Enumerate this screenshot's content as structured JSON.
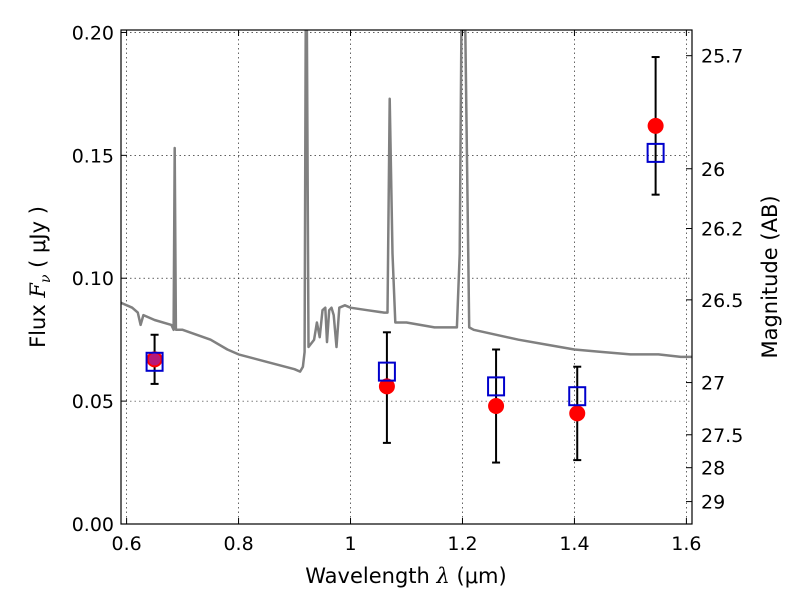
{
  "chart_data": {
    "type": "scatter",
    "xlabel": {
      "prefix": "Wavelength  ",
      "symbol": "λ",
      "suffix": " (μm)"
    },
    "ylabel": {
      "prefix": "Flux  ",
      "symbol": "F",
      "sub": "ν",
      "suffix": "  ( μJy )"
    },
    "ylabel_right": "Magnitude (AB)",
    "xlim": [
      0.59,
      1.61
    ],
    "ylim": [
      0.0,
      0.201
    ],
    "grid": true,
    "x_ticks": [
      {
        "value": 0.6,
        "label": "0.6"
      },
      {
        "value": 0.8,
        "label": "0.8"
      },
      {
        "value": 1.0,
        "label": "1"
      },
      {
        "value": 1.2,
        "label": "1.2"
      },
      {
        "value": 1.4,
        "label": "1.4"
      },
      {
        "value": 1.6,
        "label": "1.6"
      }
    ],
    "y_ticks": [
      {
        "value": 0.0,
        "label": "0.00"
      },
      {
        "value": 0.05,
        "label": "0.05"
      },
      {
        "value": 0.1,
        "label": "0.10"
      },
      {
        "value": 0.15,
        "label": "0.15"
      },
      {
        "value": 0.2,
        "label": "0.20"
      }
    ],
    "mag_ticks": [
      {
        "value": 25.7,
        "label": "25.7"
      },
      {
        "value": 26.0,
        "label": "26"
      },
      {
        "value": 26.2,
        "label": "26.2"
      },
      {
        "value": 26.5,
        "label": "26.5"
      },
      {
        "value": 27.0,
        "label": "27"
      },
      {
        "value": 27.5,
        "label": "27.5"
      },
      {
        "value": 28.0,
        "label": "28"
      },
      {
        "value": 29.0,
        "label": "29"
      }
    ],
    "series": [
      {
        "kind": "model_spectrum",
        "color": "#808080",
        "points": [
          [
            0.59,
            0.09
          ],
          [
            0.61,
            0.088
          ],
          [
            0.62,
            0.086
          ],
          [
            0.625,
            0.081
          ],
          [
            0.63,
            0.085
          ],
          [
            0.65,
            0.083
          ],
          [
            0.68,
            0.081
          ],
          [
            0.684,
            0.079
          ],
          [
            0.686,
            0.153
          ],
          [
            0.688,
            0.079
          ],
          [
            0.7,
            0.079
          ],
          [
            0.75,
            0.075
          ],
          [
            0.78,
            0.071
          ],
          [
            0.8,
            0.069
          ],
          [
            0.85,
            0.066
          ],
          [
            0.9,
            0.063
          ],
          [
            0.91,
            0.062
          ],
          [
            0.915,
            0.064
          ],
          [
            0.918,
            0.07
          ],
          [
            0.92,
            0.201
          ],
          [
            0.922,
            0.201
          ],
          [
            0.925,
            0.072
          ],
          [
            0.935,
            0.075
          ],
          [
            0.94,
            0.082
          ],
          [
            0.945,
            0.076
          ],
          [
            0.95,
            0.087
          ],
          [
            0.955,
            0.088
          ],
          [
            0.958,
            0.074
          ],
          [
            0.962,
            0.087
          ],
          [
            0.966,
            0.088
          ],
          [
            0.97,
            0.085
          ],
          [
            0.975,
            0.072
          ],
          [
            0.98,
            0.088
          ],
          [
            0.99,
            0.089
          ],
          [
            1.0,
            0.088
          ],
          [
            1.03,
            0.087
          ],
          [
            1.06,
            0.086
          ],
          [
            1.066,
            0.086
          ],
          [
            1.07,
            0.173
          ],
          [
            1.075,
            0.11
          ],
          [
            1.08,
            0.082
          ],
          [
            1.1,
            0.082
          ],
          [
            1.15,
            0.08
          ],
          [
            1.19,
            0.08
          ],
          [
            1.195,
            0.11
          ],
          [
            1.198,
            0.201
          ],
          [
            1.205,
            0.201
          ],
          [
            1.212,
            0.08
          ],
          [
            1.22,
            0.079
          ],
          [
            1.3,
            0.075
          ],
          [
            1.35,
            0.073
          ],
          [
            1.4,
            0.071
          ],
          [
            1.45,
            0.07
          ],
          [
            1.5,
            0.069
          ],
          [
            1.55,
            0.069
          ],
          [
            1.59,
            0.068
          ],
          [
            1.61,
            0.068
          ]
        ]
      },
      {
        "kind": "observed",
        "color": "#ff0000",
        "points": [
          {
            "x": 0.65,
            "y": 0.067,
            "yerr_low": 0.057,
            "yerr_high": 0.077
          },
          {
            "x": 1.065,
            "y": 0.056,
            "yerr_low": 0.033,
            "yerr_high": 0.078
          },
          {
            "x": 1.26,
            "y": 0.048,
            "yerr_low": 0.025,
            "yerr_high": 0.071
          },
          {
            "x": 1.405,
            "y": 0.045,
            "yerr_low": 0.026,
            "yerr_high": 0.064
          },
          {
            "x": 1.545,
            "y": 0.162,
            "yerr_low": 0.134,
            "yerr_high": 0.19
          }
        ]
      },
      {
        "kind": "model_photometry",
        "color": "#0000cc",
        "points": [
          {
            "x": 0.65,
            "y": 0.066
          },
          {
            "x": 1.065,
            "y": 0.062
          },
          {
            "x": 1.26,
            "y": 0.056
          },
          {
            "x": 1.405,
            "y": 0.052
          },
          {
            "x": 1.545,
            "y": 0.151
          }
        ]
      }
    ]
  }
}
